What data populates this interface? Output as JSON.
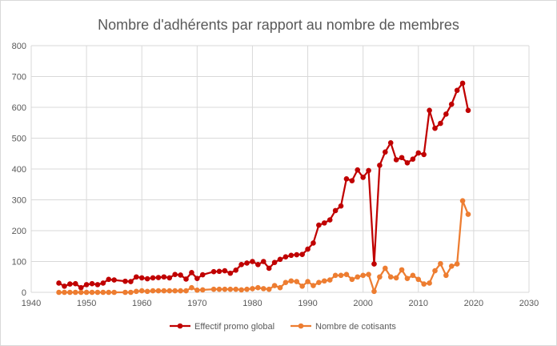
{
  "chart_data": {
    "type": "line",
    "title": "Nombre d'adhérents par rapport au nombre de membres",
    "xlabel": "",
    "ylabel": "",
    "xlim": [
      1940,
      2030
    ],
    "ylim": [
      0,
      800
    ],
    "xticks": [
      1940,
      1950,
      1960,
      1970,
      1980,
      1990,
      2000,
      2010,
      2020,
      2030
    ],
    "yticks": [
      0,
      100,
      200,
      300,
      400,
      500,
      600,
      700,
      800
    ],
    "grid": true,
    "legend": "bottom",
    "series": [
      {
        "name": "Effectif promo global",
        "color": "#c00000",
        "points": [
          [
            1945,
            30
          ],
          [
            1946,
            20
          ],
          [
            1947,
            27
          ],
          [
            1948,
            28
          ],
          [
            1949,
            15
          ],
          [
            1950,
            25
          ],
          [
            1951,
            28
          ],
          [
            1952,
            25
          ],
          [
            1953,
            30
          ],
          [
            1954,
            42
          ],
          [
            1955,
            40
          ],
          [
            1957,
            36
          ],
          [
            1958,
            35
          ],
          [
            1959,
            50
          ],
          [
            1960,
            47
          ],
          [
            1961,
            44
          ],
          [
            1962,
            47
          ],
          [
            1963,
            48
          ],
          [
            1964,
            50
          ],
          [
            1965,
            47
          ],
          [
            1966,
            58
          ],
          [
            1967,
            56
          ],
          [
            1968,
            43
          ],
          [
            1969,
            64
          ],
          [
            1970,
            45
          ],
          [
            1971,
            57
          ],
          [
            1973,
            67
          ],
          [
            1974,
            68
          ],
          [
            1975,
            70
          ],
          [
            1976,
            62
          ],
          [
            1977,
            72
          ],
          [
            1978,
            90
          ],
          [
            1979,
            95
          ],
          [
            1980,
            100
          ],
          [
            1981,
            90
          ],
          [
            1982,
            100
          ],
          [
            1983,
            78
          ],
          [
            1984,
            97
          ],
          [
            1985,
            107
          ],
          [
            1986,
            115
          ],
          [
            1987,
            120
          ],
          [
            1988,
            122
          ],
          [
            1989,
            123
          ],
          [
            1990,
            140
          ],
          [
            1991,
            160
          ],
          [
            1992,
            218
          ],
          [
            1993,
            225
          ],
          [
            1994,
            235
          ],
          [
            1995,
            265
          ],
          [
            1996,
            280
          ],
          [
            1997,
            368
          ],
          [
            1998,
            362
          ],
          [
            1999,
            397
          ],
          [
            2000,
            373
          ],
          [
            2001,
            395
          ],
          [
            2002,
            92
          ],
          [
            2003,
            412
          ],
          [
            2004,
            455
          ],
          [
            2005,
            485
          ],
          [
            2006,
            430
          ],
          [
            2007,
            437
          ],
          [
            2008,
            420
          ],
          [
            2009,
            432
          ],
          [
            2010,
            452
          ],
          [
            2011,
            447
          ],
          [
            2012,
            590
          ],
          [
            2013,
            532
          ],
          [
            2014,
            548
          ],
          [
            2015,
            578
          ],
          [
            2016,
            610
          ],
          [
            2017,
            655
          ],
          [
            2018,
            678
          ],
          [
            2019,
            590
          ]
        ]
      },
      {
        "name": "Nombre de cotisants",
        "color": "#ed7d31",
        "points": [
          [
            1945,
            0
          ],
          [
            1946,
            0
          ],
          [
            1947,
            0
          ],
          [
            1948,
            0
          ],
          [
            1949,
            0
          ],
          [
            1950,
            0
          ],
          [
            1951,
            0
          ],
          [
            1952,
            0
          ],
          [
            1953,
            0
          ],
          [
            1954,
            0
          ],
          [
            1955,
            0
          ],
          [
            1957,
            0
          ],
          [
            1958,
            0
          ],
          [
            1959,
            3
          ],
          [
            1960,
            5
          ],
          [
            1961,
            3
          ],
          [
            1962,
            5
          ],
          [
            1963,
            5
          ],
          [
            1964,
            5
          ],
          [
            1965,
            5
          ],
          [
            1966,
            5
          ],
          [
            1967,
            5
          ],
          [
            1968,
            5
          ],
          [
            1969,
            15
          ],
          [
            1970,
            7
          ],
          [
            1971,
            8
          ],
          [
            1973,
            10
          ],
          [
            1974,
            10
          ],
          [
            1975,
            10
          ],
          [
            1976,
            10
          ],
          [
            1977,
            10
          ],
          [
            1978,
            8
          ],
          [
            1979,
            10
          ],
          [
            1980,
            12
          ],
          [
            1981,
            15
          ],
          [
            1982,
            12
          ],
          [
            1983,
            10
          ],
          [
            1984,
            22
          ],
          [
            1985,
            15
          ],
          [
            1986,
            32
          ],
          [
            1987,
            37
          ],
          [
            1988,
            35
          ],
          [
            1989,
            20
          ],
          [
            1990,
            35
          ],
          [
            1991,
            22
          ],
          [
            1992,
            32
          ],
          [
            1993,
            37
          ],
          [
            1994,
            40
          ],
          [
            1995,
            55
          ],
          [
            1996,
            55
          ],
          [
            1997,
            58
          ],
          [
            1998,
            42
          ],
          [
            1999,
            50
          ],
          [
            2000,
            55
          ],
          [
            2001,
            58
          ],
          [
            2002,
            3
          ],
          [
            2003,
            50
          ],
          [
            2004,
            78
          ],
          [
            2005,
            50
          ],
          [
            2006,
            47
          ],
          [
            2007,
            73
          ],
          [
            2008,
            45
          ],
          [
            2009,
            55
          ],
          [
            2010,
            42
          ],
          [
            2011,
            27
          ],
          [
            2012,
            30
          ],
          [
            2013,
            70
          ],
          [
            2014,
            93
          ],
          [
            2015,
            55
          ],
          [
            2016,
            85
          ],
          [
            2017,
            92
          ],
          [
            2018,
            297
          ],
          [
            2019,
            253
          ]
        ]
      }
    ]
  }
}
